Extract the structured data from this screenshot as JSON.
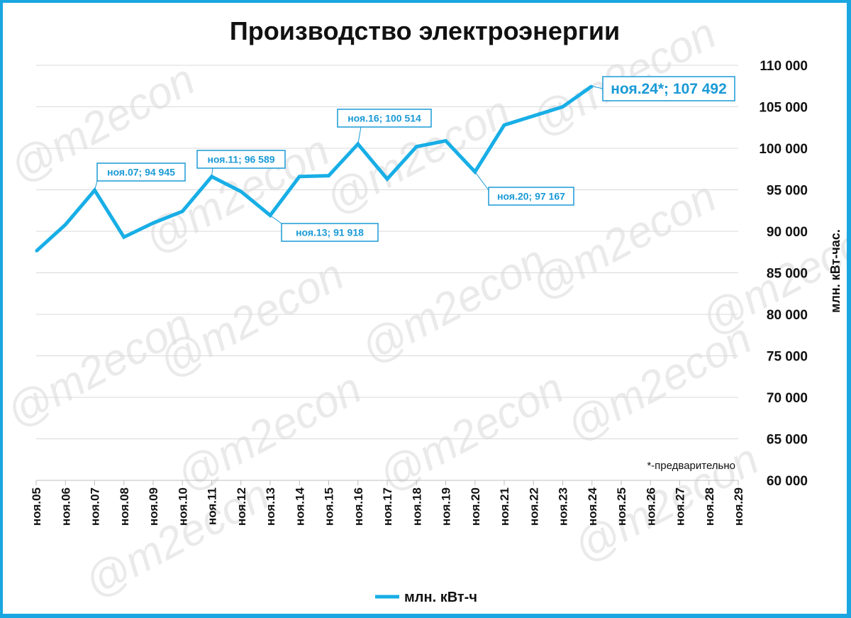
{
  "watermark": "@m2econ",
  "footnote": "*-предварительно",
  "colors": {
    "line": "#18aee6",
    "annotation": "#1a9ad6",
    "grid": "#d9d9d9",
    "frame": "#1aa6e0"
  },
  "chart_data": {
    "type": "line",
    "title": "Производство электроэнергии",
    "xlabel": "",
    "ylabel": "млн. кВт-час.",
    "y_axis_position": "right",
    "ylim": [
      60000,
      110000
    ],
    "yticks": [
      "60 000",
      "65 000",
      "70 000",
      "75 000",
      "80 000",
      "85 000",
      "90 000",
      "95 000",
      "100 000",
      "105 000",
      "110 000"
    ],
    "categories": [
      "ноя.05",
      "ноя.06",
      "ноя.07",
      "ноя.08",
      "ноя.09",
      "ноя.10",
      "ноя.11",
      "ноя.12",
      "ноя.13",
      "ноя.14",
      "ноя.15",
      "ноя.16",
      "ноя.17",
      "ноя.18",
      "ноя.19",
      "ноя.20",
      "ноя.21",
      "ноя.22",
      "ноя.23",
      "ноя.24",
      "ноя.25",
      "ноя.26",
      "ноя.27",
      "ноя.28",
      "ноя.29"
    ],
    "series": [
      {
        "name": "млн. кВт-ч",
        "values": [
          87600,
          90800,
          94945,
          89300,
          91000,
          92400,
          96589,
          94800,
          91918,
          96600,
          96700,
          100514,
          96300,
          100200,
          100900,
          97167,
          102800,
          103900,
          105000,
          107492,
          null,
          null,
          null,
          null,
          null
        ]
      }
    ],
    "annotations": [
      {
        "label": "ноя.07; 94 945",
        "index": 2
      },
      {
        "label": "ноя.11; 96 589",
        "index": 6
      },
      {
        "label": "ноя.13; 91 918",
        "index": 8
      },
      {
        "label": "ноя.16; 100 514",
        "index": 11
      },
      {
        "label": "ноя.20; 97 167",
        "index": 15
      },
      {
        "label": "ноя.24*; 107 492",
        "index": 19
      }
    ],
    "legend": "bottom",
    "grid": true
  }
}
